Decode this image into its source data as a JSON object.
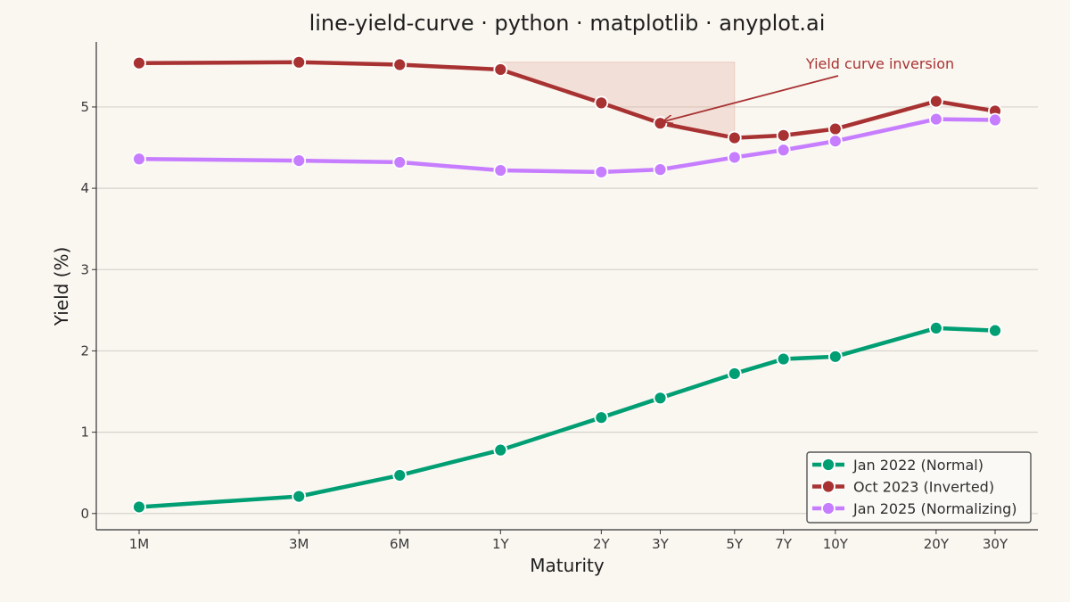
{
  "chart_data": {
    "type": "line",
    "title": "line-yield-curve · python · matplotlib · anyplot.ai",
    "xlabel": "Maturity",
    "ylabel": "Yield (%)",
    "x_scale": "log (maturity in years)",
    "categories": [
      "1M",
      "3M",
      "6M",
      "1Y",
      "2Y",
      "3Y",
      "5Y",
      "7Y",
      "10Y",
      "20Y",
      "30Y"
    ],
    "x": [
      0.0833,
      0.25,
      0.5,
      1,
      2,
      3,
      5,
      7,
      10,
      20,
      30
    ],
    "ylim": [
      -0.2,
      5.8
    ],
    "yticks": [
      0,
      1,
      2,
      3,
      4,
      5
    ],
    "grid": "horizontal",
    "legend_position": "bottom-right",
    "series": [
      {
        "name": "Jan 2022 (Normal)",
        "color": "#009e73",
        "values": [
          0.08,
          0.21,
          0.47,
          0.78,
          1.18,
          1.42,
          1.72,
          1.9,
          1.93,
          2.28,
          2.25
        ]
      },
      {
        "name": "Oct 2023 (Inverted)",
        "color": "#a83232",
        "values": [
          5.54,
          5.55,
          5.52,
          5.46,
          5.05,
          4.8,
          4.62,
          4.65,
          4.73,
          5.07,
          4.95
        ]
      },
      {
        "name": "Jan 2025 (Normalizing)",
        "color": "#c77dff",
        "values": [
          4.36,
          4.34,
          4.32,
          4.22,
          4.2,
          4.23,
          4.38,
          4.47,
          4.58,
          4.85,
          4.84
        ]
      }
    ],
    "shaded_region": {
      "series": "Oct 2023 (Inverted)",
      "x_from": 1,
      "x_to": 5,
      "y_top": 5.55,
      "color": "#e2b4a8"
    },
    "annotation": {
      "text": "Yield curve inversion",
      "color": "#a83232",
      "points_to_x": 3,
      "points_to_y": 4.8
    }
  }
}
